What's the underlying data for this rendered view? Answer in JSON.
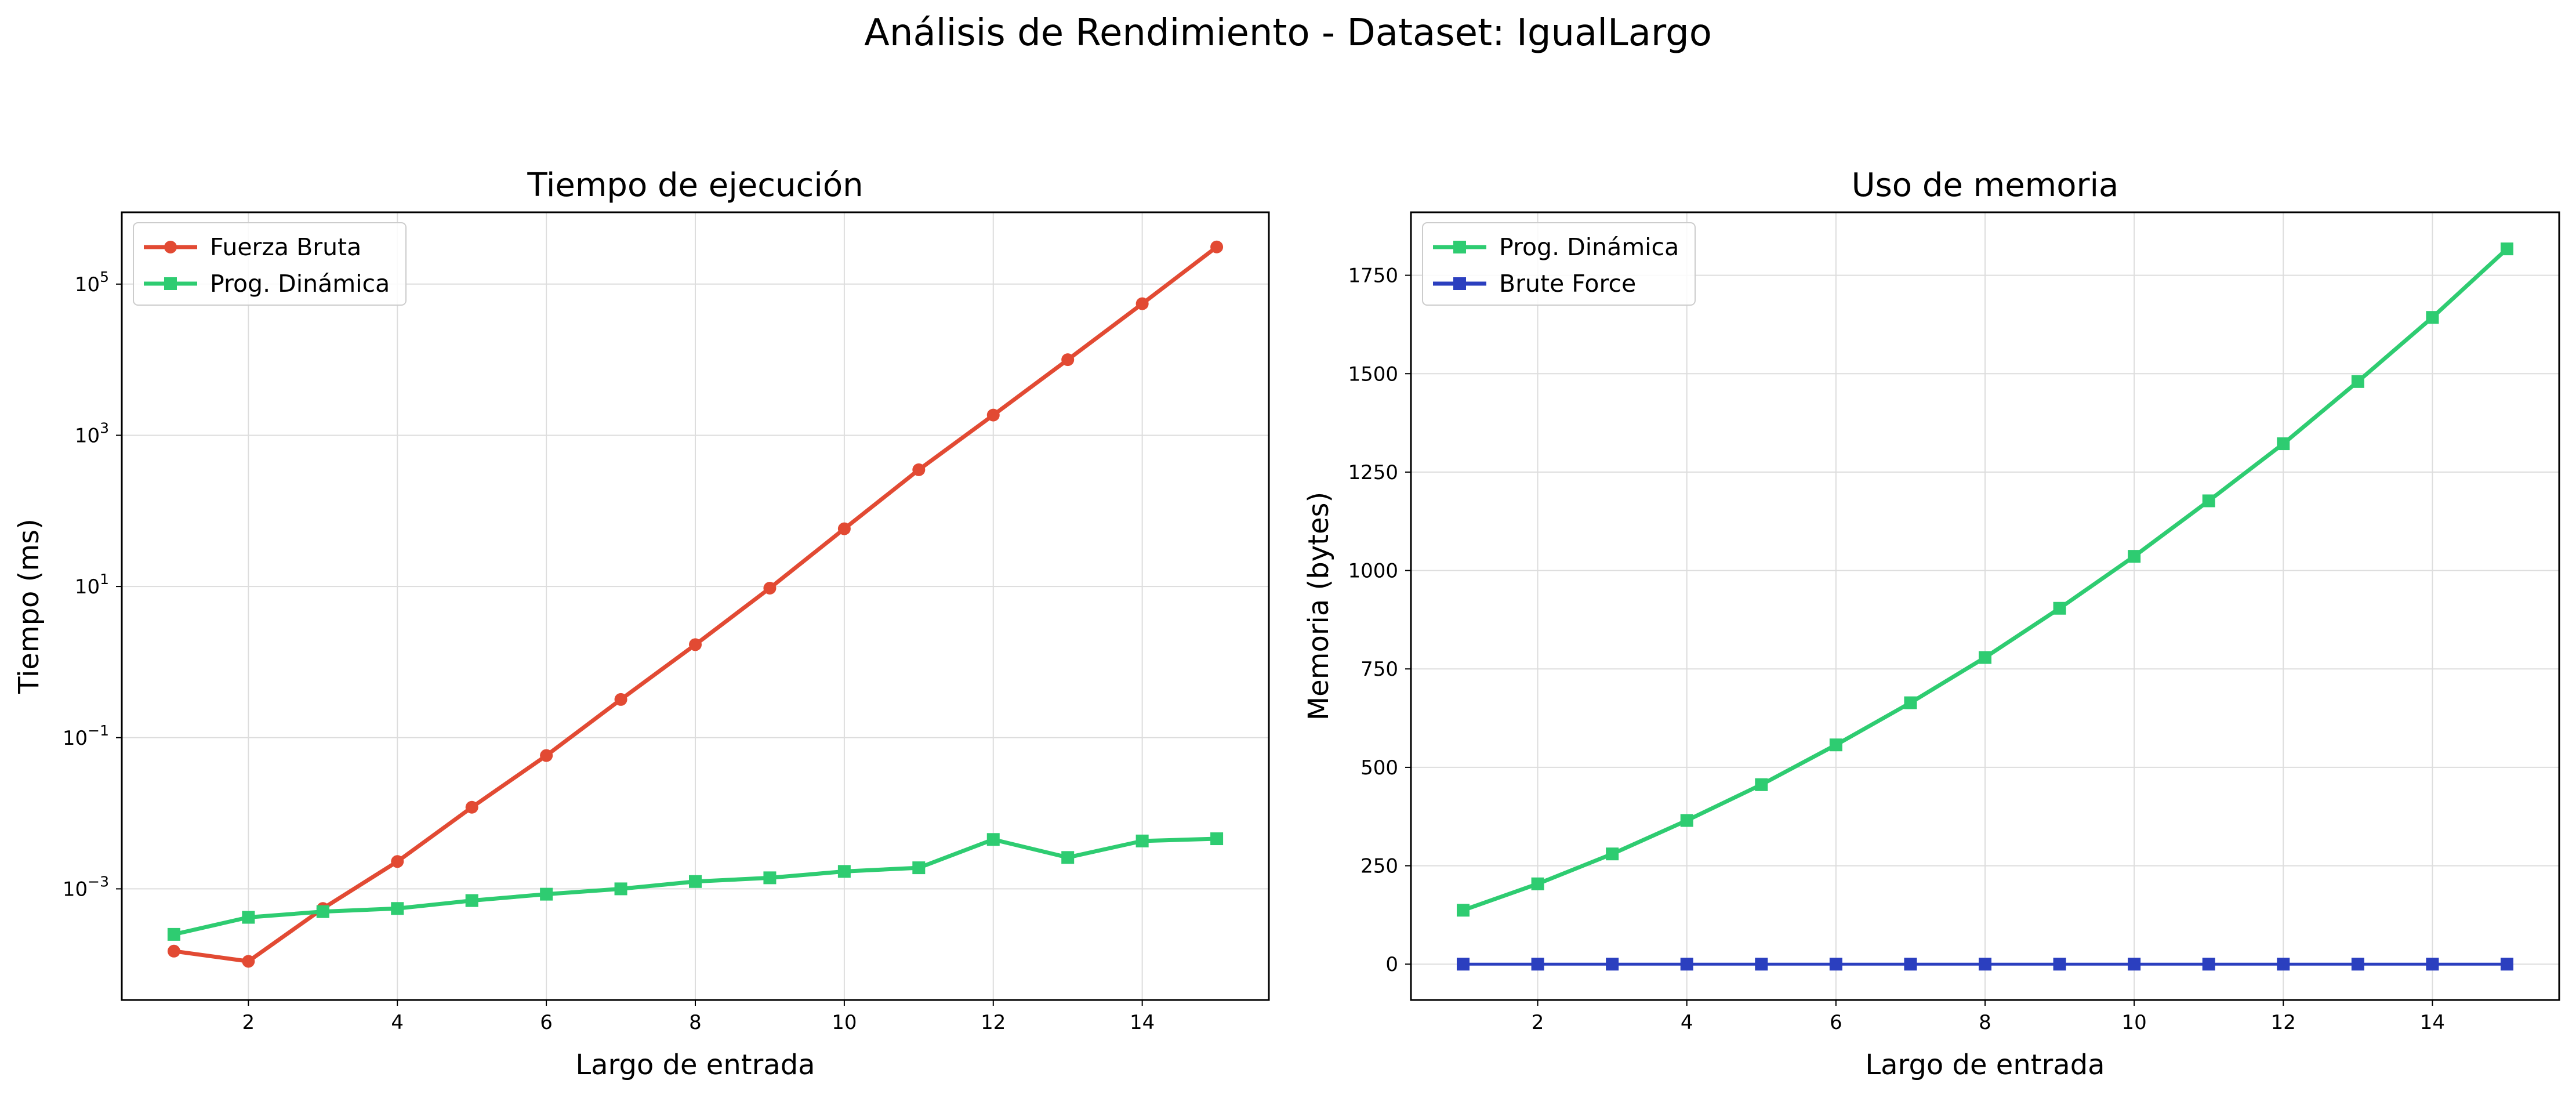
{
  "suptitle": "Análisis de Rendimiento - Dataset: IgualLargo",
  "chart_data": [
    {
      "type": "line",
      "title": "Tiempo de ejecución",
      "xlabel": "Largo de entrada",
      "ylabel": "Tiempo (ms)",
      "yscale": "log",
      "xlim": [
        0.3,
        15.7
      ],
      "ylim_log10": [
        -4.47,
        5.95
      ],
      "xticks": [
        2,
        4,
        6,
        8,
        10,
        12,
        14
      ],
      "yticks": [
        {
          "value": 0.001,
          "base": "10",
          "exp": "−3"
        },
        {
          "value": 0.1,
          "base": "10",
          "exp": "−1"
        },
        {
          "value": 10,
          "base": "10",
          "exp": "1"
        },
        {
          "value": 1000,
          "base": "10",
          "exp": "3"
        },
        {
          "value": 100000,
          "base": "10",
          "exp": "5"
        }
      ],
      "grid": true,
      "legend": "upper-left",
      "x": [
        1,
        2,
        3,
        4,
        5,
        6,
        7,
        8,
        9,
        10,
        11,
        12,
        13,
        14,
        15
      ],
      "series": [
        {
          "name": "Fuerza Bruta",
          "color": "#e24a33",
          "marker": "circle",
          "values": [
            0.00015,
            0.00011,
            0.00055,
            0.0023,
            0.012,
            0.058,
            0.32,
            1.7,
            9.5,
            58,
            350,
            1850,
            10000,
            55000,
            310000
          ]
        },
        {
          "name": "Prog. Dinámica",
          "color": "#2ecc71",
          "marker": "square",
          "values": [
            0.00025,
            0.00042,
            0.0005,
            0.00055,
            0.0007,
            0.00085,
            0.001,
            0.00125,
            0.0014,
            0.0017,
            0.0019,
            0.0045,
            0.0026,
            0.0043,
            0.0046
          ]
        }
      ]
    },
    {
      "type": "line",
      "title": "Uso de memoria",
      "xlabel": "Largo de entrada",
      "ylabel": "Memoria (bytes)",
      "yscale": "linear",
      "xlim": [
        0.3,
        15.7
      ],
      "ylim": [
        -91,
        1910
      ],
      "xticks": [
        2,
        4,
        6,
        8,
        10,
        12,
        14
      ],
      "yticks": [
        0,
        250,
        500,
        750,
        1000,
        1250,
        1500,
        1750
      ],
      "grid": true,
      "legend": "upper-left",
      "x": [
        1,
        2,
        3,
        4,
        5,
        6,
        7,
        8,
        9,
        10,
        11,
        12,
        13,
        14,
        15
      ],
      "series": [
        {
          "name": "Prog. Dinámica",
          "color": "#2ecc71",
          "marker": "square",
          "values": [
            137,
            204,
            280,
            365,
            456,
            557,
            664,
            779,
            904,
            1036,
            1177,
            1322,
            1480,
            1643,
            1817
          ]
        },
        {
          "name": "Brute Force",
          "color": "#2b3fbf",
          "marker": "square",
          "values": [
            0,
            0,
            0,
            0,
            0,
            0,
            0,
            0,
            0,
            0,
            0,
            0,
            0,
            0,
            0
          ]
        }
      ]
    }
  ]
}
